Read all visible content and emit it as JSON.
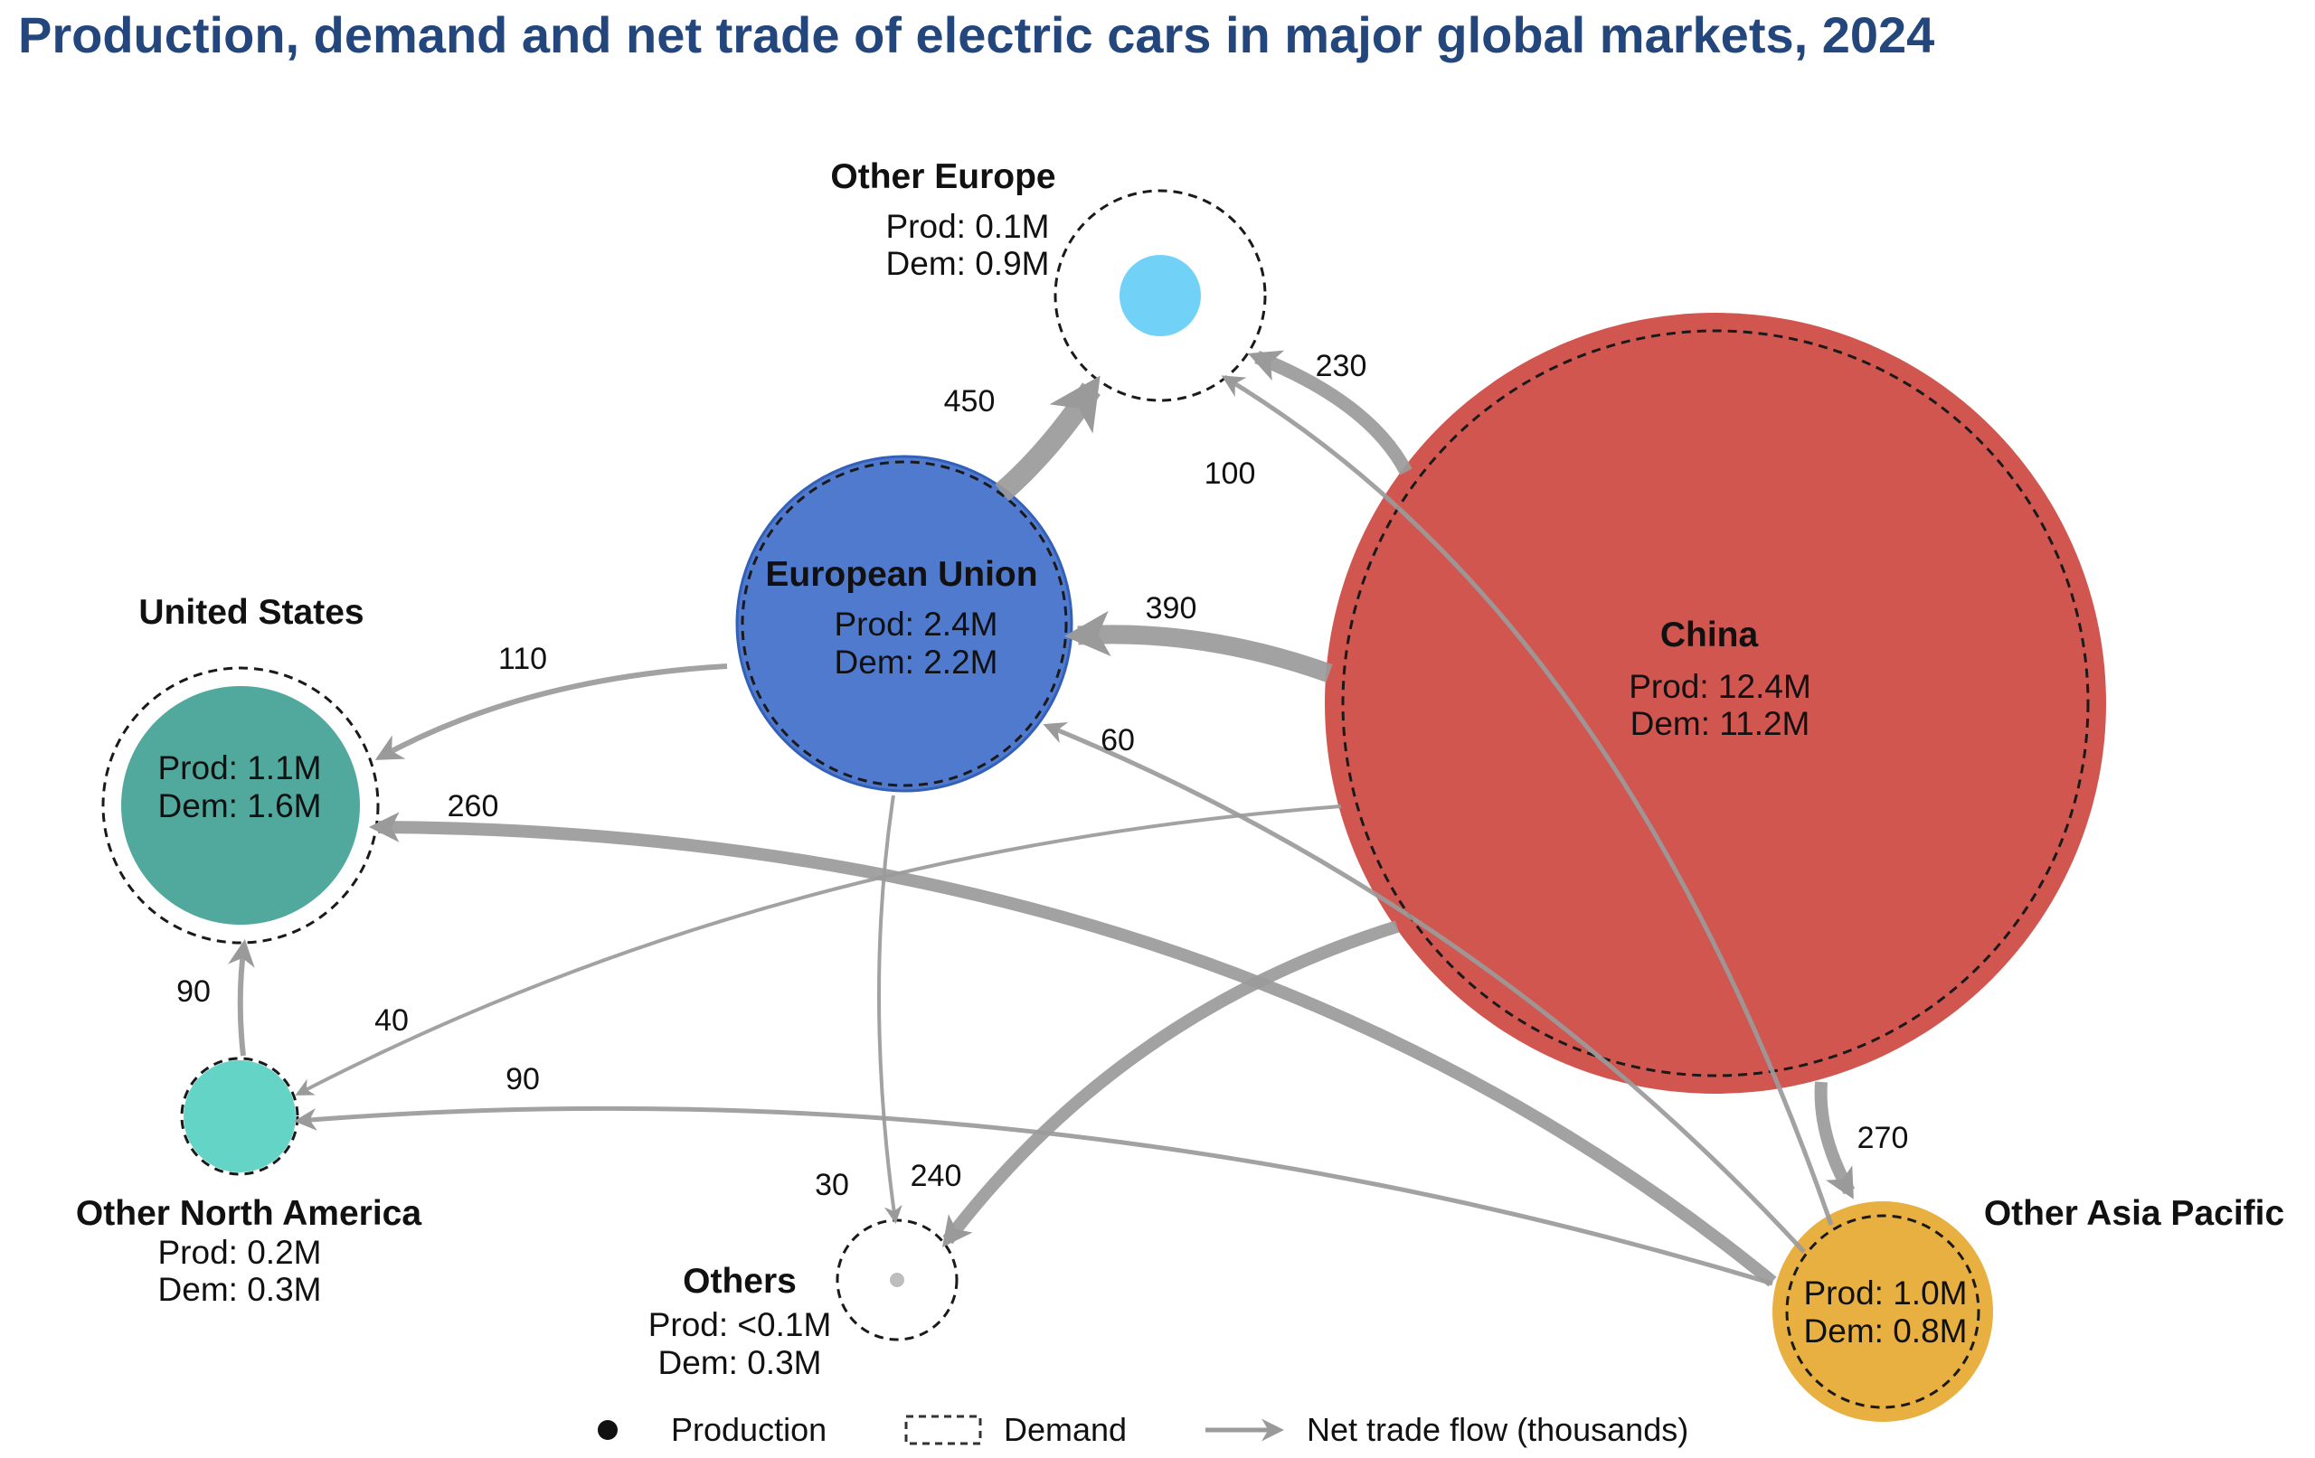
{
  "title": "Production, demand and net trade of electric cars in major global markets, 2024",
  "markets": [
    {
      "id": "china",
      "name": "China",
      "prod_text": "Prod: 12.4M",
      "dem_text": "Dem: 11.2M",
      "production_m": 12.4,
      "demand_m": 11.2,
      "color": "#d0514a"
    },
    {
      "id": "eu",
      "name": "European Union",
      "prod_text": "Prod: 2.4M",
      "dem_text": "Dem: 2.2M",
      "production_m": 2.4,
      "demand_m": 2.2,
      "color": "#4a76cc"
    },
    {
      "id": "us",
      "name": "United States",
      "prod_text": "Prod: 1.1M",
      "dem_text": "Dem: 1.6M",
      "production_m": 1.1,
      "demand_m": 1.6,
      "color": "#4ba59a"
    },
    {
      "id": "other-europe",
      "name": "Other Europe",
      "prod_text": "Prod: 0.1M",
      "dem_text": "Dem: 0.9M",
      "production_m": 0.1,
      "demand_m": 0.9,
      "color": "#6dcff6"
    },
    {
      "id": "other-north-america",
      "name": "Other North America",
      "prod_text": "Prod: 0.2M",
      "dem_text": "Dem: 0.3M",
      "production_m": 0.2,
      "demand_m": 0.3,
      "color": "#5fd3c4"
    },
    {
      "id": "others",
      "name": "Others",
      "prod_text": "Prod: <0.1M",
      "dem_text": "Dem: 0.3M",
      "production_m": 0.05,
      "demand_m": 0.3,
      "color": "#bbbbbb"
    },
    {
      "id": "other-asia-pacific",
      "name": "Other Asia Pacific",
      "prod_text": "Prod: 1.0M",
      "dem_text": "Dem: 0.8M",
      "production_m": 1.0,
      "demand_m": 0.8,
      "color": "#e7ac3b"
    }
  ],
  "flows": [
    {
      "id": "eu-to-other-europe",
      "from": "European Union",
      "to": "Other Europe",
      "label": "450",
      "value": 450
    },
    {
      "id": "china-to-other-europe",
      "from": "China",
      "to": "Other Europe",
      "label": "230",
      "value": 230
    },
    {
      "id": "oap-to-other-europe",
      "from": "Other Asia Pacific",
      "to": "Other Europe",
      "label": "100",
      "value": 100
    },
    {
      "id": "china-to-eu",
      "from": "China",
      "to": "European Union",
      "label": "390",
      "value": 390
    },
    {
      "id": "eu-to-us",
      "from": "European Union",
      "to": "United States",
      "label": "110",
      "value": 110
    },
    {
      "id": "oap-to-eu",
      "from": "Other Asia Pacific",
      "to": "European Union",
      "label": "60",
      "value": 60
    },
    {
      "id": "oap-to-us",
      "from": "Other Asia Pacific",
      "to": "United States",
      "label": "260",
      "value": 260
    },
    {
      "id": "ona-to-us",
      "from": "Other North America",
      "to": "United States",
      "label": "90",
      "value": 90
    },
    {
      "id": "china-to-ona",
      "from": "China",
      "to": "Other North America",
      "label": "40",
      "value": 40
    },
    {
      "id": "oap-to-ona",
      "from": "Other Asia Pacific",
      "to": "Other North America",
      "label": "90",
      "value": 90
    },
    {
      "id": "eu-to-others",
      "from": "European Union",
      "to": "Others",
      "label": "30",
      "value": 30
    },
    {
      "id": "china-to-others",
      "from": "China",
      "to": "Others",
      "label": "240",
      "value": 240
    },
    {
      "id": "china-to-oap",
      "from": "China",
      "to": "Other Asia Pacific",
      "label": "270",
      "value": 270
    }
  ],
  "legend": {
    "production": "Production",
    "demand": "Demand",
    "flow": "Net trade flow (thousands)"
  }
}
